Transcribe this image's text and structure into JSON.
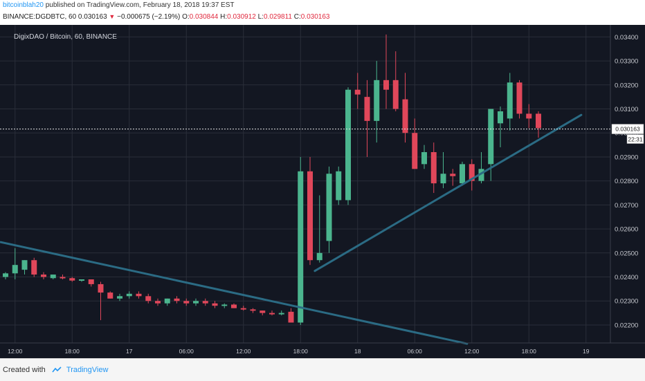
{
  "header": {
    "author": "bitcoinblah20",
    "published_text": "published on TradingView.com, February 18, 2018 19:37 EST",
    "symbol_line": "BINANCE:DGDBTC, 60",
    "last": "0.030163",
    "change": "−0.000675 (−2.19%)",
    "o_label": "O:",
    "o_value": "0.030844",
    "h_label": "H:",
    "h_value": "0.030912",
    "l_label": "L:",
    "l_value": "0.029811",
    "c_label": "C:",
    "c_value": "0.030163"
  },
  "footer": {
    "created_with": "Created with",
    "brand": "TradingView"
  },
  "chart_data": {
    "type": "candlestick",
    "title": "DigixDAO / Bitcoin, 60, BINANCE",
    "ylim": [
      0.02125,
      0.0345
    ],
    "y_ticks": [
      "0.03400",
      "0.03300",
      "0.03200",
      "0.03100",
      "0.03000",
      "0.02900",
      "0.02800",
      "0.02700",
      "0.02600",
      "0.02500",
      "0.02400",
      "0.02300",
      "0.02200"
    ],
    "y_tick_values": [
      0.034,
      0.033,
      0.032,
      0.031,
      0.03,
      0.029,
      0.028,
      0.027,
      0.026,
      0.025,
      0.024,
      0.023,
      0.022
    ],
    "x_ticks": [
      "12:00",
      "18:00",
      "17",
      "06:00",
      "12:00",
      "18:00",
      "18",
      "06:00",
      "12:00",
      "18:00",
      "19"
    ],
    "x_tick_index": [
      1,
      7,
      13,
      19,
      25,
      31,
      37,
      43,
      49,
      55,
      61
    ],
    "current_price": "0.030163",
    "countdown": "22:31",
    "colors": {
      "up": "#4bb58e",
      "down": "#e0475a",
      "background": "#131722",
      "grid": "#2a2e39",
      "trend": "#2b6b84",
      "axis_text": "#c8cad0"
    },
    "candles": [
      {
        "o": 0.024,
        "h": 0.0242,
        "l": 0.0239,
        "c": 0.02415
      },
      {
        "o": 0.02415,
        "h": 0.0252,
        "l": 0.0239,
        "c": 0.0245
      },
      {
        "o": 0.0243,
        "h": 0.0247,
        "l": 0.0241,
        "c": 0.0247
      },
      {
        "o": 0.0247,
        "h": 0.0248,
        "l": 0.024,
        "c": 0.0241
      },
      {
        "o": 0.0241,
        "h": 0.0242,
        "l": 0.0239,
        "c": 0.024
      },
      {
        "o": 0.02395,
        "h": 0.0241,
        "l": 0.0239,
        "c": 0.0241
      },
      {
        "o": 0.024,
        "h": 0.0241,
        "l": 0.0239,
        "c": 0.02395
      },
      {
        "o": 0.02395,
        "h": 0.024,
        "l": 0.0238,
        "c": 0.02385
      },
      {
        "o": 0.02385,
        "h": 0.0239,
        "l": 0.0238,
        "c": 0.0239
      },
      {
        "o": 0.0239,
        "h": 0.0239,
        "l": 0.0236,
        "c": 0.0237
      },
      {
        "o": 0.0237,
        "h": 0.0238,
        "l": 0.0222,
        "c": 0.02335
      },
      {
        "o": 0.02335,
        "h": 0.0234,
        "l": 0.0231,
        "c": 0.0231
      },
      {
        "o": 0.0231,
        "h": 0.0233,
        "l": 0.023,
        "c": 0.0232
      },
      {
        "o": 0.0232,
        "h": 0.0234,
        "l": 0.0231,
        "c": 0.0233
      },
      {
        "o": 0.0233,
        "h": 0.0234,
        "l": 0.0231,
        "c": 0.0232
      },
      {
        "o": 0.0232,
        "h": 0.0233,
        "l": 0.0229,
        "c": 0.023
      },
      {
        "o": 0.023,
        "h": 0.0231,
        "l": 0.0228,
        "c": 0.0229
      },
      {
        "o": 0.0229,
        "h": 0.0231,
        "l": 0.0228,
        "c": 0.0231
      },
      {
        "o": 0.0231,
        "h": 0.0232,
        "l": 0.0229,
        "c": 0.023
      },
      {
        "o": 0.023,
        "h": 0.0231,
        "l": 0.0228,
        "c": 0.0229
      },
      {
        "o": 0.0229,
        "h": 0.0231,
        "l": 0.0228,
        "c": 0.023
      },
      {
        "o": 0.023,
        "h": 0.0231,
        "l": 0.0228,
        "c": 0.0229
      },
      {
        "o": 0.0229,
        "h": 0.023,
        "l": 0.0227,
        "c": 0.0228
      },
      {
        "o": 0.0228,
        "h": 0.0229,
        "l": 0.0227,
        "c": 0.02285
      },
      {
        "o": 0.02285,
        "h": 0.0229,
        "l": 0.0227,
        "c": 0.0227
      },
      {
        "o": 0.0227,
        "h": 0.0228,
        "l": 0.0226,
        "c": 0.02265
      },
      {
        "o": 0.02265,
        "h": 0.0227,
        "l": 0.0225,
        "c": 0.0226
      },
      {
        "o": 0.0226,
        "h": 0.0226,
        "l": 0.0224,
        "c": 0.0225
      },
      {
        "o": 0.0225,
        "h": 0.0226,
        "l": 0.0224,
        "c": 0.02245
      },
      {
        "o": 0.02245,
        "h": 0.0226,
        "l": 0.0224,
        "c": 0.0225
      },
      {
        "o": 0.02255,
        "h": 0.0227,
        "l": 0.0222,
        "c": 0.0221
      },
      {
        "o": 0.0221,
        "h": 0.029,
        "l": 0.022,
        "c": 0.0284
      },
      {
        "o": 0.0284,
        "h": 0.029,
        "l": 0.0245,
        "c": 0.0247
      },
      {
        "o": 0.0247,
        "h": 0.0274,
        "l": 0.0246,
        "c": 0.025
      },
      {
        "o": 0.0255,
        "h": 0.0286,
        "l": 0.025,
        "c": 0.0283
      },
      {
        "o": 0.0272,
        "h": 0.0286,
        "l": 0.027,
        "c": 0.0284
      },
      {
        "o": 0.0272,
        "h": 0.0319,
        "l": 0.027,
        "c": 0.0318
      },
      {
        "o": 0.0318,
        "h": 0.0325,
        "l": 0.031,
        "c": 0.0316
      },
      {
        "o": 0.0315,
        "h": 0.0322,
        "l": 0.029,
        "c": 0.0305
      },
      {
        "o": 0.0305,
        "h": 0.033,
        "l": 0.0296,
        "c": 0.0322
      },
      {
        "o": 0.0322,
        "h": 0.0341,
        "l": 0.031,
        "c": 0.0318
      },
      {
        "o": 0.0322,
        "h": 0.0334,
        "l": 0.0309,
        "c": 0.031
      },
      {
        "o": 0.0314,
        "h": 0.0325,
        "l": 0.0296,
        "c": 0.03
      },
      {
        "o": 0.03,
        "h": 0.0306,
        "l": 0.0285,
        "c": 0.0285
      },
      {
        "o": 0.0287,
        "h": 0.0295,
        "l": 0.0285,
        "c": 0.0292
      },
      {
        "o": 0.0292,
        "h": 0.0296,
        "l": 0.0275,
        "c": 0.0279
      },
      {
        "o": 0.0279,
        "h": 0.0292,
        "l": 0.0277,
        "c": 0.0283
      },
      {
        "o": 0.0283,
        "h": 0.0285,
        "l": 0.0278,
        "c": 0.0282
      },
      {
        "o": 0.0279,
        "h": 0.0288,
        "l": 0.0278,
        "c": 0.0287
      },
      {
        "o": 0.0287,
        "h": 0.0289,
        "l": 0.0276,
        "c": 0.028
      },
      {
        "o": 0.028,
        "h": 0.0292,
        "l": 0.0279,
        "c": 0.0285
      },
      {
        "o": 0.0287,
        "h": 0.031,
        "l": 0.028,
        "c": 0.031
      },
      {
        "o": 0.0304,
        "h": 0.0311,
        "l": 0.0294,
        "c": 0.0309
      },
      {
        "o": 0.0306,
        "h": 0.0325,
        "l": 0.0301,
        "c": 0.0321
      },
      {
        "o": 0.0321,
        "h": 0.0322,
        "l": 0.0306,
        "c": 0.0308
      },
      {
        "o": 0.0308,
        "h": 0.0312,
        "l": 0.0302,
        "c": 0.0306
      },
      {
        "o": 0.0308,
        "h": 0.0309,
        "l": 0.0298,
        "c": 0.0302
      }
    ],
    "trendlines": [
      {
        "from": {
          "i": -0.5,
          "p": 0.02545
        },
        "to": {
          "i": 48.5,
          "p": 0.02122
        }
      },
      {
        "from": {
          "i": 32.5,
          "p": 0.02425
        },
        "to": {
          "i": 60.5,
          "p": 0.03075
        }
      }
    ]
  }
}
